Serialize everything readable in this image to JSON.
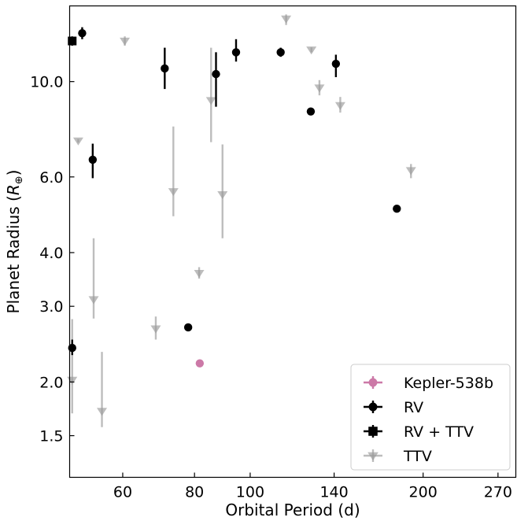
{
  "chart_data": {
    "type": "scatter",
    "xlabel": "Orbital Period (d)",
    "ylabel_main": "Planet Radius (",
    "ylabel_symbol": "R",
    "ylabel_sub": "⊕",
    "ylabel_close": ")",
    "x_scale": "log",
    "y_scale": "log",
    "xlim": [
      48.5,
      290
    ],
    "ylim": [
      1.2,
      15.0
    ],
    "x_ticks": [
      {
        "value": 60,
        "label": "60"
      },
      {
        "value": 80,
        "label": "80"
      },
      {
        "value": 100,
        "label": "100"
      },
      {
        "value": 140,
        "label": "140"
      },
      {
        "value": 200,
        "label": "200"
      },
      {
        "value": 270,
        "label": "270"
      }
    ],
    "y_ticks": [
      {
        "value": 1.5,
        "label": "1.5"
      },
      {
        "value": 2.0,
        "label": "2.0"
      },
      {
        "value": 3.0,
        "label": "3.0"
      },
      {
        "value": 4.0,
        "label": "4.0"
      },
      {
        "value": 6.0,
        "label": "6.0"
      },
      {
        "value": 10.0,
        "label": "10.0"
      }
    ],
    "grid": false,
    "legend_position": "lower-right",
    "series": [
      {
        "name": "Kepler-538b",
        "marker": "circle",
        "color": "#cc79a7",
        "alpha": 1.0,
        "points": [
          {
            "x": 81.7,
            "y": 2.21,
            "ylo": 2.21,
            "yhi": 2.21
          }
        ]
      },
      {
        "name": "RV",
        "marker": "circle",
        "color": "#000000",
        "alpha": 1.0,
        "points": [
          {
            "x": 49.0,
            "y": 2.4,
            "ylo": 2.31,
            "yhi": 2.51
          },
          {
            "x": 51.0,
            "y": 12.96,
            "ylo": 12.55,
            "yhi": 13.38
          },
          {
            "x": 53.2,
            "y": 6.58,
            "ylo": 5.96,
            "yhi": 7.17
          },
          {
            "x": 71.0,
            "y": 10.73,
            "ylo": 9.61,
            "yhi": 11.99
          },
          {
            "x": 78.0,
            "y": 2.68,
            "ylo": 2.68,
            "yhi": 2.68
          },
          {
            "x": 87.2,
            "y": 10.41,
            "ylo": 8.74,
            "yhi": 11.7
          },
          {
            "x": 94.5,
            "y": 11.7,
            "ylo": 11.13,
            "yhi": 12.55
          },
          {
            "x": 113.0,
            "y": 11.7,
            "ylo": 11.42,
            "yhi": 11.99
          },
          {
            "x": 127.5,
            "y": 8.52,
            "ylo": 8.52,
            "yhi": 8.52
          },
          {
            "x": 141.0,
            "y": 11.0,
            "ylo": 10.24,
            "yhi": 11.55
          },
          {
            "x": 180.0,
            "y": 5.06,
            "ylo": 5.06,
            "yhi": 5.06
          }
        ]
      },
      {
        "name": "RV + TTV",
        "marker": "square",
        "color": "#000000",
        "alpha": 1.0,
        "points": [
          {
            "x": 49.0,
            "y": 12.43,
            "ylo": 12.12,
            "yhi": 12.74
          }
        ]
      },
      {
        "name": "TTV",
        "marker": "triangle_down",
        "color": "#999999",
        "alpha": 0.65,
        "points": [
          {
            "x": 49.0,
            "y": 2.02,
            "ylo": 1.69,
            "yhi": 2.8
          },
          {
            "x": 50.2,
            "y": 7.28,
            "ylo": 7.21,
            "yhi": 7.35
          },
          {
            "x": 53.4,
            "y": 3.11,
            "ylo": 2.81,
            "yhi": 4.32
          },
          {
            "x": 55.2,
            "y": 1.71,
            "ylo": 1.57,
            "yhi": 2.35
          },
          {
            "x": 60.5,
            "y": 12.43,
            "ylo": 12.12,
            "yhi": 12.74
          },
          {
            "x": 68.5,
            "y": 2.66,
            "ylo": 2.51,
            "yhi": 2.84
          },
          {
            "x": 73.5,
            "y": 5.55,
            "ylo": 4.86,
            "yhi": 7.86
          },
          {
            "x": 81.5,
            "y": 3.58,
            "ylo": 3.48,
            "yhi": 3.7
          },
          {
            "x": 85.5,
            "y": 9.04,
            "ylo": 7.23,
            "yhi": 11.99
          },
          {
            "x": 89.5,
            "y": 5.46,
            "ylo": 4.32,
            "yhi": 7.14
          },
          {
            "x": 115.5,
            "y": 13.99,
            "ylo": 13.54,
            "yhi": 14.33
          },
          {
            "x": 127.8,
            "y": 11.85,
            "ylo": 11.7,
            "yhi": 12.01
          },
          {
            "x": 132.0,
            "y": 9.67,
            "ylo": 9.29,
            "yhi": 10.08
          },
          {
            "x": 143.5,
            "y": 8.8,
            "ylo": 8.47,
            "yhi": 9.21
          },
          {
            "x": 190.5,
            "y": 6.21,
            "ylo": 5.96,
            "yhi": 6.43
          }
        ]
      }
    ]
  }
}
